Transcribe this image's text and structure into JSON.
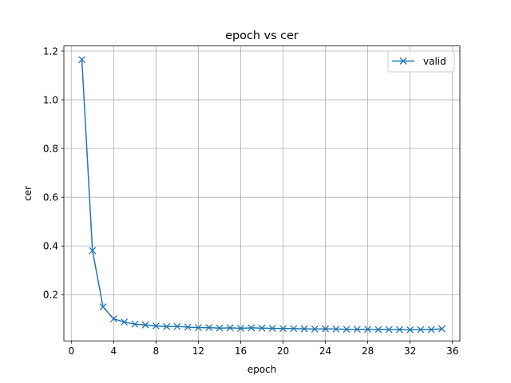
{
  "chart_data": {
    "type": "line",
    "title": "epoch vs cer",
    "xlabel": "epoch",
    "ylabel": "cer",
    "xlim": [
      -0.7,
      36.7
    ],
    "ylim": [
      0.0106,
      1.2209
    ],
    "xticks": [
      0,
      4,
      8,
      12,
      16,
      20,
      24,
      28,
      32,
      36
    ],
    "yticks": [
      0.2,
      0.4,
      0.6,
      0.8,
      1.0,
      1.2
    ],
    "ytick_labels": [
      "0.2",
      "0.4",
      "0.6",
      "0.8",
      "1.0",
      "1.2"
    ],
    "grid": true,
    "legend_position": "upper right",
    "series": [
      {
        "name": "valid",
        "color": "#1f77b4",
        "marker": "x",
        "x": [
          1,
          2,
          3,
          4,
          5,
          6,
          7,
          8,
          9,
          10,
          11,
          12,
          13,
          14,
          15,
          16,
          17,
          18,
          19,
          20,
          21,
          22,
          23,
          24,
          25,
          26,
          27,
          28,
          29,
          30,
          31,
          32,
          33,
          34,
          35
        ],
        "y": [
          1.165,
          0.381,
          0.15,
          0.101,
          0.088,
          0.079,
          0.076,
          0.072,
          0.069,
          0.07,
          0.067,
          0.065,
          0.065,
          0.063,
          0.064,
          0.062,
          0.064,
          0.063,
          0.062,
          0.061,
          0.061,
          0.06,
          0.059,
          0.06,
          0.059,
          0.058,
          0.058,
          0.058,
          0.057,
          0.057,
          0.057,
          0.056,
          0.057,
          0.057,
          0.06
        ]
      }
    ]
  }
}
